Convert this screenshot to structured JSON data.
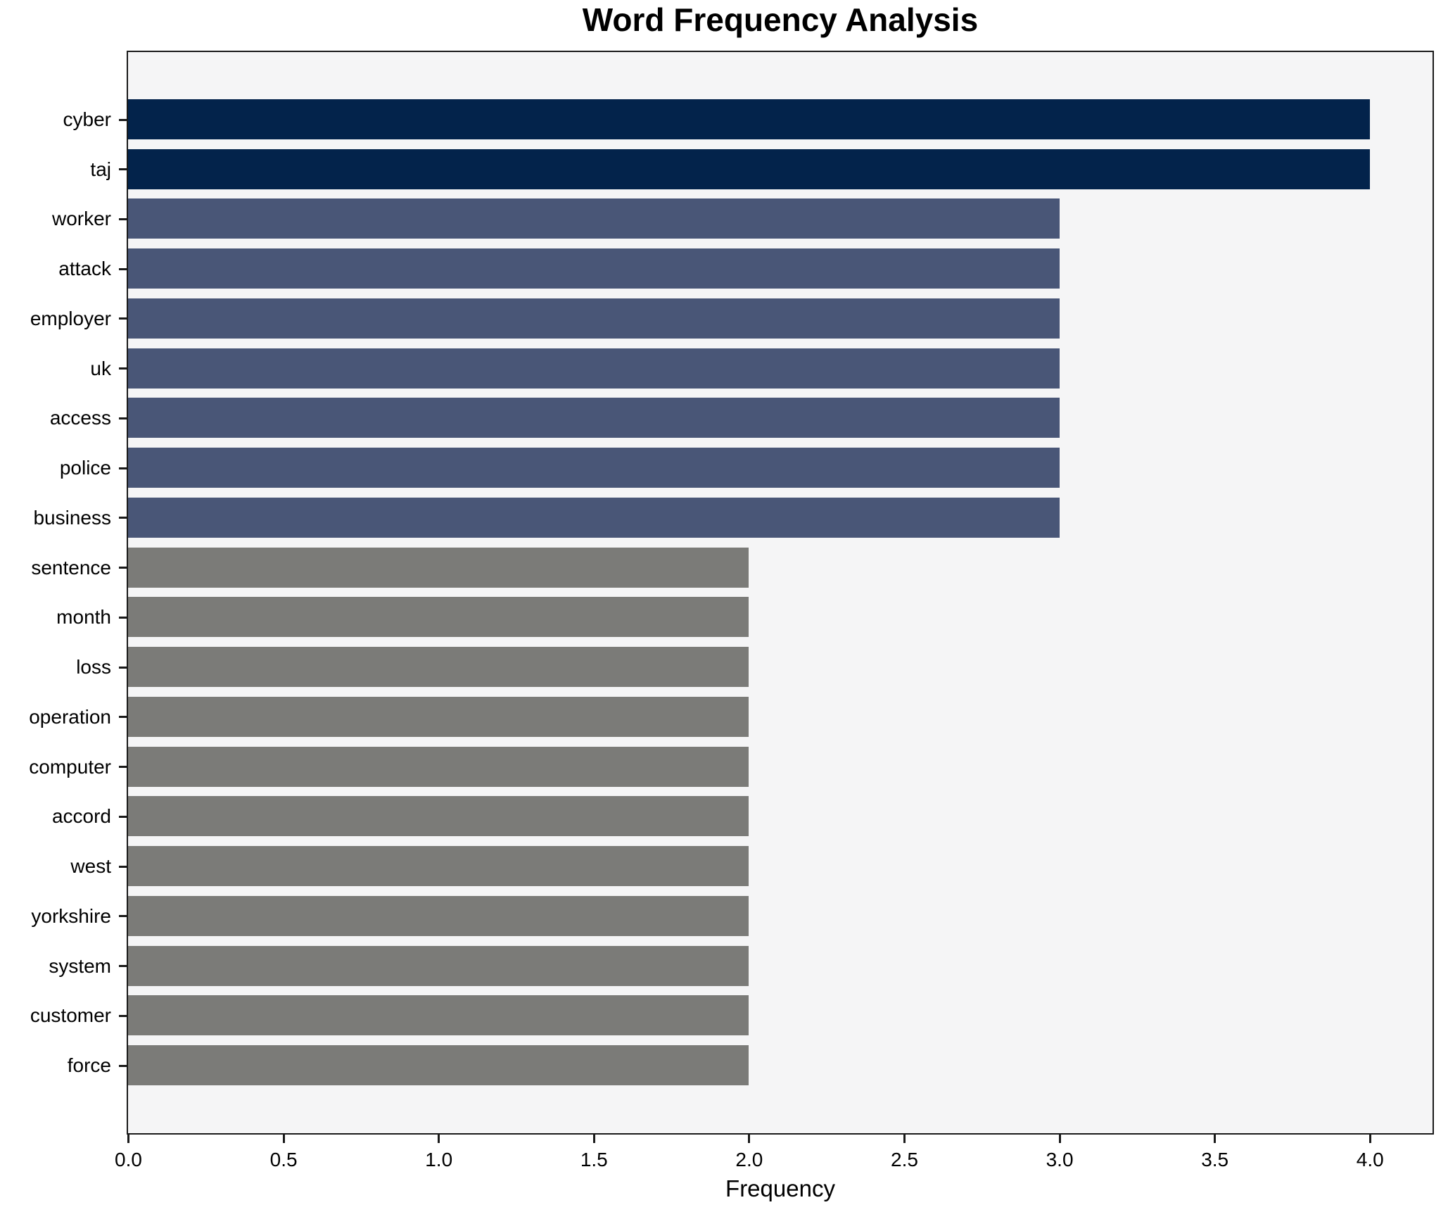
{
  "title": "Word Frequency Analysis",
  "chart_data": {
    "type": "bar",
    "orientation": "horizontal",
    "title": "Word Frequency Analysis",
    "xlabel": "Frequency",
    "ylabel": "",
    "grid": false,
    "legend": null,
    "xlim": [
      0,
      4.2
    ],
    "xticks": [
      {
        "value": 0.0,
        "label": "0.0"
      },
      {
        "value": 0.5,
        "label": "0.5"
      },
      {
        "value": 1.0,
        "label": "1.0"
      },
      {
        "value": 1.5,
        "label": "1.5"
      },
      {
        "value": 2.0,
        "label": "2.0"
      },
      {
        "value": 2.5,
        "label": "2.5"
      },
      {
        "value": 3.0,
        "label": "3.0"
      },
      {
        "value": 3.5,
        "label": "3.5"
      },
      {
        "value": 4.0,
        "label": "4.0"
      }
    ],
    "categories": [
      "cyber",
      "taj",
      "worker",
      "attack",
      "employer",
      "uk",
      "access",
      "police",
      "business",
      "sentence",
      "month",
      "loss",
      "operation",
      "computer",
      "accord",
      "west",
      "yorkshire",
      "system",
      "customer",
      "force"
    ],
    "values": [
      4,
      4,
      3,
      3,
      3,
      3,
      3,
      3,
      3,
      2,
      2,
      2,
      2,
      2,
      2,
      2,
      2,
      2,
      2,
      2
    ],
    "bar_colors": [
      "#03234b",
      "#03234b",
      "#495677",
      "#495677",
      "#495677",
      "#495677",
      "#495677",
      "#495677",
      "#495677",
      "#7b7b78",
      "#7b7b78",
      "#7b7b78",
      "#7b7b78",
      "#7b7b78",
      "#7b7b78",
      "#7b7b78",
      "#7b7b78",
      "#7b7b78",
      "#7b7b78",
      "#7b7b78"
    ]
  },
  "style": {
    "figure_bg": "#ffffff",
    "plot_bg": "#f5f5f6",
    "spine_color": "#1a1a1a",
    "text_color": "#000000",
    "color_freq_4": "#03234b",
    "color_freq_3": "#495677",
    "color_freq_2": "#7b7b78"
  }
}
